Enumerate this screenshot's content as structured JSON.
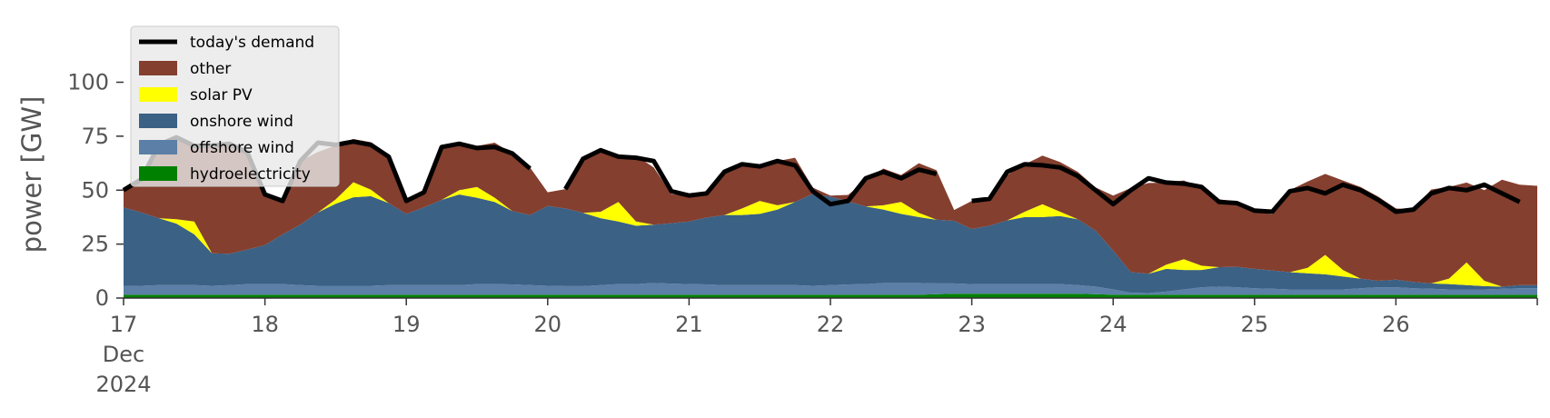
{
  "chart_data": {
    "type": "area",
    "title": "",
    "xlabel": "",
    "ylabel": "power [GW]",
    "xlim": [
      "2024-12-17T00:00",
      "2024-12-27T00:00"
    ],
    "ylim": [
      0,
      120
    ],
    "yticks": [
      0,
      25,
      50,
      75,
      100
    ],
    "ytick_labels": [
      "0",
      "25",
      "50",
      "75",
      "100"
    ],
    "xticks": [
      "2024-12-17",
      "2024-12-18",
      "2024-12-19",
      "2024-12-20",
      "2024-12-21",
      "2024-12-22",
      "2024-12-23",
      "2024-12-24",
      "2024-12-25",
      "2024-12-26"
    ],
    "xtick_labels": [
      [
        "17",
        "Dec",
        "2024"
      ],
      [
        "18"
      ],
      [
        "19"
      ],
      [
        "20"
      ],
      [
        "21"
      ],
      [
        "22"
      ],
      [
        "23"
      ],
      [
        "24"
      ],
      [
        "25"
      ],
      [
        "26"
      ]
    ],
    "grid": false,
    "legend_position": "top-left",
    "x_time": [
      "2024-12-17T00:00",
      "2024-12-17T03:00",
      "2024-12-17T06:00",
      "2024-12-17T09:00",
      "2024-12-17T12:00",
      "2024-12-17T15:00",
      "2024-12-17T18:00",
      "2024-12-17T21:00",
      "2024-12-18T00:00",
      "2024-12-18T03:00",
      "2024-12-18T06:00",
      "2024-12-18T09:00",
      "2024-12-18T12:00",
      "2024-12-18T15:00",
      "2024-12-18T18:00",
      "2024-12-18T21:00",
      "2024-12-19T00:00",
      "2024-12-19T03:00",
      "2024-12-19T06:00",
      "2024-12-19T09:00",
      "2024-12-19T12:00",
      "2024-12-19T15:00",
      "2024-12-19T18:00",
      "2024-12-19T21:00",
      "2024-12-20T00:00",
      "2024-12-20T03:00",
      "2024-12-20T06:00",
      "2024-12-20T09:00",
      "2024-12-20T12:00",
      "2024-12-20T15:00",
      "2024-12-20T18:00",
      "2024-12-20T21:00",
      "2024-12-21T00:00",
      "2024-12-21T03:00",
      "2024-12-21T06:00",
      "2024-12-21T09:00",
      "2024-12-21T12:00",
      "2024-12-21T15:00",
      "2024-12-21T18:00",
      "2024-12-21T21:00",
      "2024-12-22T00:00",
      "2024-12-22T03:00",
      "2024-12-22T06:00",
      "2024-12-22T09:00",
      "2024-12-22T12:00",
      "2024-12-22T15:00",
      "2024-12-22T18:00",
      "2024-12-22T21:00",
      "2024-12-23T00:00",
      "2024-12-23T03:00",
      "2024-12-23T06:00",
      "2024-12-23T09:00",
      "2024-12-23T12:00",
      "2024-12-23T15:00",
      "2024-12-23T18:00",
      "2024-12-23T21:00",
      "2024-12-24T00:00",
      "2024-12-24T03:00",
      "2024-12-24T06:00",
      "2024-12-24T09:00",
      "2024-12-24T12:00",
      "2024-12-24T15:00",
      "2024-12-24T18:00",
      "2024-12-24T21:00",
      "2024-12-25T00:00",
      "2024-12-25T03:00",
      "2024-12-25T06:00",
      "2024-12-25T09:00",
      "2024-12-25T12:00",
      "2024-12-25T15:00",
      "2024-12-25T18:00",
      "2024-12-25T21:00",
      "2024-12-26T00:00",
      "2024-12-26T03:00",
      "2024-12-26T06:00",
      "2024-12-26T09:00",
      "2024-12-26T12:00",
      "2024-12-26T15:00",
      "2024-12-26T18:00",
      "2024-12-26T21:00",
      "2024-12-27T00:00"
    ],
    "series": [
      {
        "name": "hydroelectricity",
        "color": "#008000",
        "values": [
          1.5,
          1.5,
          1.5,
          1.5,
          1.5,
          1.5,
          1.5,
          1.5,
          1.5,
          1.5,
          1.5,
          1.5,
          1.5,
          1.5,
          1.5,
          1.5,
          1.5,
          1.5,
          1.5,
          1.5,
          1.5,
          1.5,
          1.5,
          1.5,
          1.5,
          1.5,
          1.5,
          1.5,
          1.5,
          1.5,
          1.5,
          1.5,
          1.5,
          1.5,
          1.5,
          1.5,
          1.5,
          1.5,
          1.5,
          1.5,
          1.5,
          1.5,
          1.5,
          1.5,
          1.5,
          1.5,
          1.8,
          2.0,
          2.0,
          2.0,
          2.0,
          2.0,
          2.0,
          2.0,
          2.0,
          1.8,
          1.5,
          1.5,
          1.5,
          1.5,
          1.5,
          1.5,
          1.5,
          1.5,
          1.5,
          1.5,
          1.5,
          1.5,
          1.5,
          1.5,
          1.5,
          1.5,
          1.5,
          1.5,
          1.5,
          1.5,
          1.5,
          1.5,
          1.5,
          1.5,
          1.5
        ]
      },
      {
        "name": "offshore wind",
        "color": "#5b7fa6",
        "values": [
          4.0,
          4.2,
          4.5,
          4.5,
          4.5,
          4.2,
          4.5,
          5.0,
          5.0,
          5.0,
          4.5,
          4.2,
          4.2,
          4.2,
          4.2,
          4.5,
          4.5,
          4.5,
          4.5,
          4.5,
          5.0,
          5.0,
          4.8,
          4.5,
          4.2,
          4.0,
          4.0,
          4.5,
          5.0,
          5.0,
          5.5,
          5.2,
          5.0,
          4.8,
          4.5,
          4.5,
          4.5,
          4.5,
          4.5,
          4.2,
          4.5,
          4.8,
          5.0,
          5.5,
          5.5,
          5.5,
          5.0,
          4.8,
          4.5,
          4.5,
          4.5,
          4.5,
          4.5,
          4.5,
          4.0,
          3.5,
          2.5,
          1.0,
          0.8,
          1.5,
          2.5,
          3.5,
          3.8,
          3.5,
          3.0,
          2.8,
          2.5,
          2.5,
          2.5,
          2.5,
          3.0,
          3.5,
          3.5,
          3.0,
          2.8,
          2.5,
          2.5,
          2.5,
          2.8,
          3.0,
          3.0
        ]
      },
      {
        "name": "onshore wind",
        "color": "#3b6185",
        "values": [
          36.5,
          34.0,
          31.0,
          28.5,
          23.5,
          15.0,
          14.5,
          16.0,
          18.0,
          23.0,
          28.0,
          34.0,
          38.0,
          41.0,
          41.5,
          38.0,
          33.0,
          36.0,
          39.5,
          42.0,
          40.0,
          38.0,
          34.0,
          32.5,
          37.0,
          36.0,
          34.0,
          31.0,
          29.0,
          27.0,
          27.0,
          28.0,
          29.0,
          31.0,
          32.5,
          32.5,
          33.0,
          35.0,
          38.5,
          42.5,
          41.0,
          38.5,
          36.0,
          34.0,
          32.0,
          30.5,
          29.5,
          29.0,
          25.5,
          27.0,
          29.5,
          31.0,
          31.0,
          31.5,
          30.5,
          26.0,
          18.0,
          9.5,
          9.0,
          10.5,
          9.0,
          8.0,
          9.0,
          9.5,
          9.0,
          8.5,
          8.0,
          7.5,
          7.0,
          6.0,
          4.5,
          3.0,
          3.5,
          3.0,
          2.5,
          2.5,
          2.0,
          1.5,
          1.0,
          1.5,
          1.5
        ]
      },
      {
        "name": "solar PV",
        "color": "#ffff00",
        "values": [
          0,
          0,
          0,
          2.0,
          6.0,
          0,
          0,
          0,
          0,
          0,
          0,
          0,
          2.0,
          7.0,
          3.0,
          0,
          0,
          0,
          0,
          2.0,
          5.0,
          2.0,
          0,
          0,
          0,
          0,
          0,
          3.0,
          9.0,
          2.0,
          0,
          0,
          0,
          0,
          0,
          3.0,
          6.0,
          2.0,
          0,
          0,
          0,
          0,
          0,
          2.0,
          5.5,
          2.0,
          0,
          0,
          0,
          0,
          0,
          2.5,
          6.0,
          2.0,
          0,
          0,
          0,
          0,
          0,
          2.0,
          5.0,
          2.0,
          0,
          0,
          0,
          0,
          0,
          2.5,
          9.0,
          3.0,
          0,
          0,
          0,
          0,
          0,
          2.5,
          10.5,
          2.5,
          0,
          0,
          0
        ]
      },
      {
        "name": "other",
        "color": "#843f2f",
        "values": [
          8.0,
          15.0,
          34.0,
          38.0,
          35.0,
          50.0,
          51.0,
          45.0,
          23.5,
          16.5,
          29.5,
          28.0,
          25.0,
          20.0,
          22.0,
          22.5,
          6.0,
          7.0,
          24.5,
          21.5,
          19.0,
          25.5,
          26.7,
          22.0,
          6.3,
          9.0,
          26.0,
          29.5,
          21.0,
          30.5,
          26.5,
          13.5,
          11.5,
          11.0,
          19.5,
          21.0,
          17.0,
          20.5,
          20.5,
          3.0,
          0.5,
          3.0,
          12.0,
          17.0,
          12.5,
          23.0,
          23.0,
          5.0,
          13.0,
          12.5,
          21.0,
          22.0,
          22.5,
          23.0,
          22.0,
          20.0,
          25.5,
          39.0,
          42.0,
          38.0,
          36.5,
          36.0,
          31.5,
          30.0,
          26.5,
          26.0,
          38.0,
          40.0,
          37.5,
          41.5,
          42.5,
          39.0,
          33.0,
          33.5,
          43.5,
          42.5,
          37.0,
          42.0,
          49.5,
          46.5,
          46.0
        ]
      }
    ],
    "demand": {
      "name": "today's demand",
      "color": "#000000",
      "values": [
        50.0,
        55.0,
        71.0,
        74.5,
        70.5,
        70.7,
        71.5,
        67.5,
        48.0,
        45.0,
        63.5,
        72.0,
        71.0,
        72.5,
        71.0,
        65.5,
        45.0,
        49.0,
        70.0,
        71.5,
        69.5,
        70.0,
        67.0,
        60.0,
        null,
        50.5,
        64.5,
        68.5,
        65.5,
        65.0,
        63.5,
        49.5,
        47.5,
        48.5,
        58.5,
        62.0,
        61.0,
        63.5,
        61.5,
        49.5,
        43.5,
        45.0,
        55.5,
        58.5,
        55.5,
        59.5,
        57.5,
        null,
        45.0,
        46.0,
        58.5,
        62.0,
        61.5,
        60.5,
        56.5,
        50.0,
        43.5,
        50.0,
        55.5,
        53.5,
        53.0,
        51.5,
        44.5,
        44.0,
        40.5,
        40.0,
        49.5,
        51.0,
        48.5,
        52.5,
        50.0,
        45.5,
        40.0,
        41.0,
        48.5,
        51.0,
        50.0,
        52.5,
        48.5,
        44.5,
        null
      ]
    }
  }
}
